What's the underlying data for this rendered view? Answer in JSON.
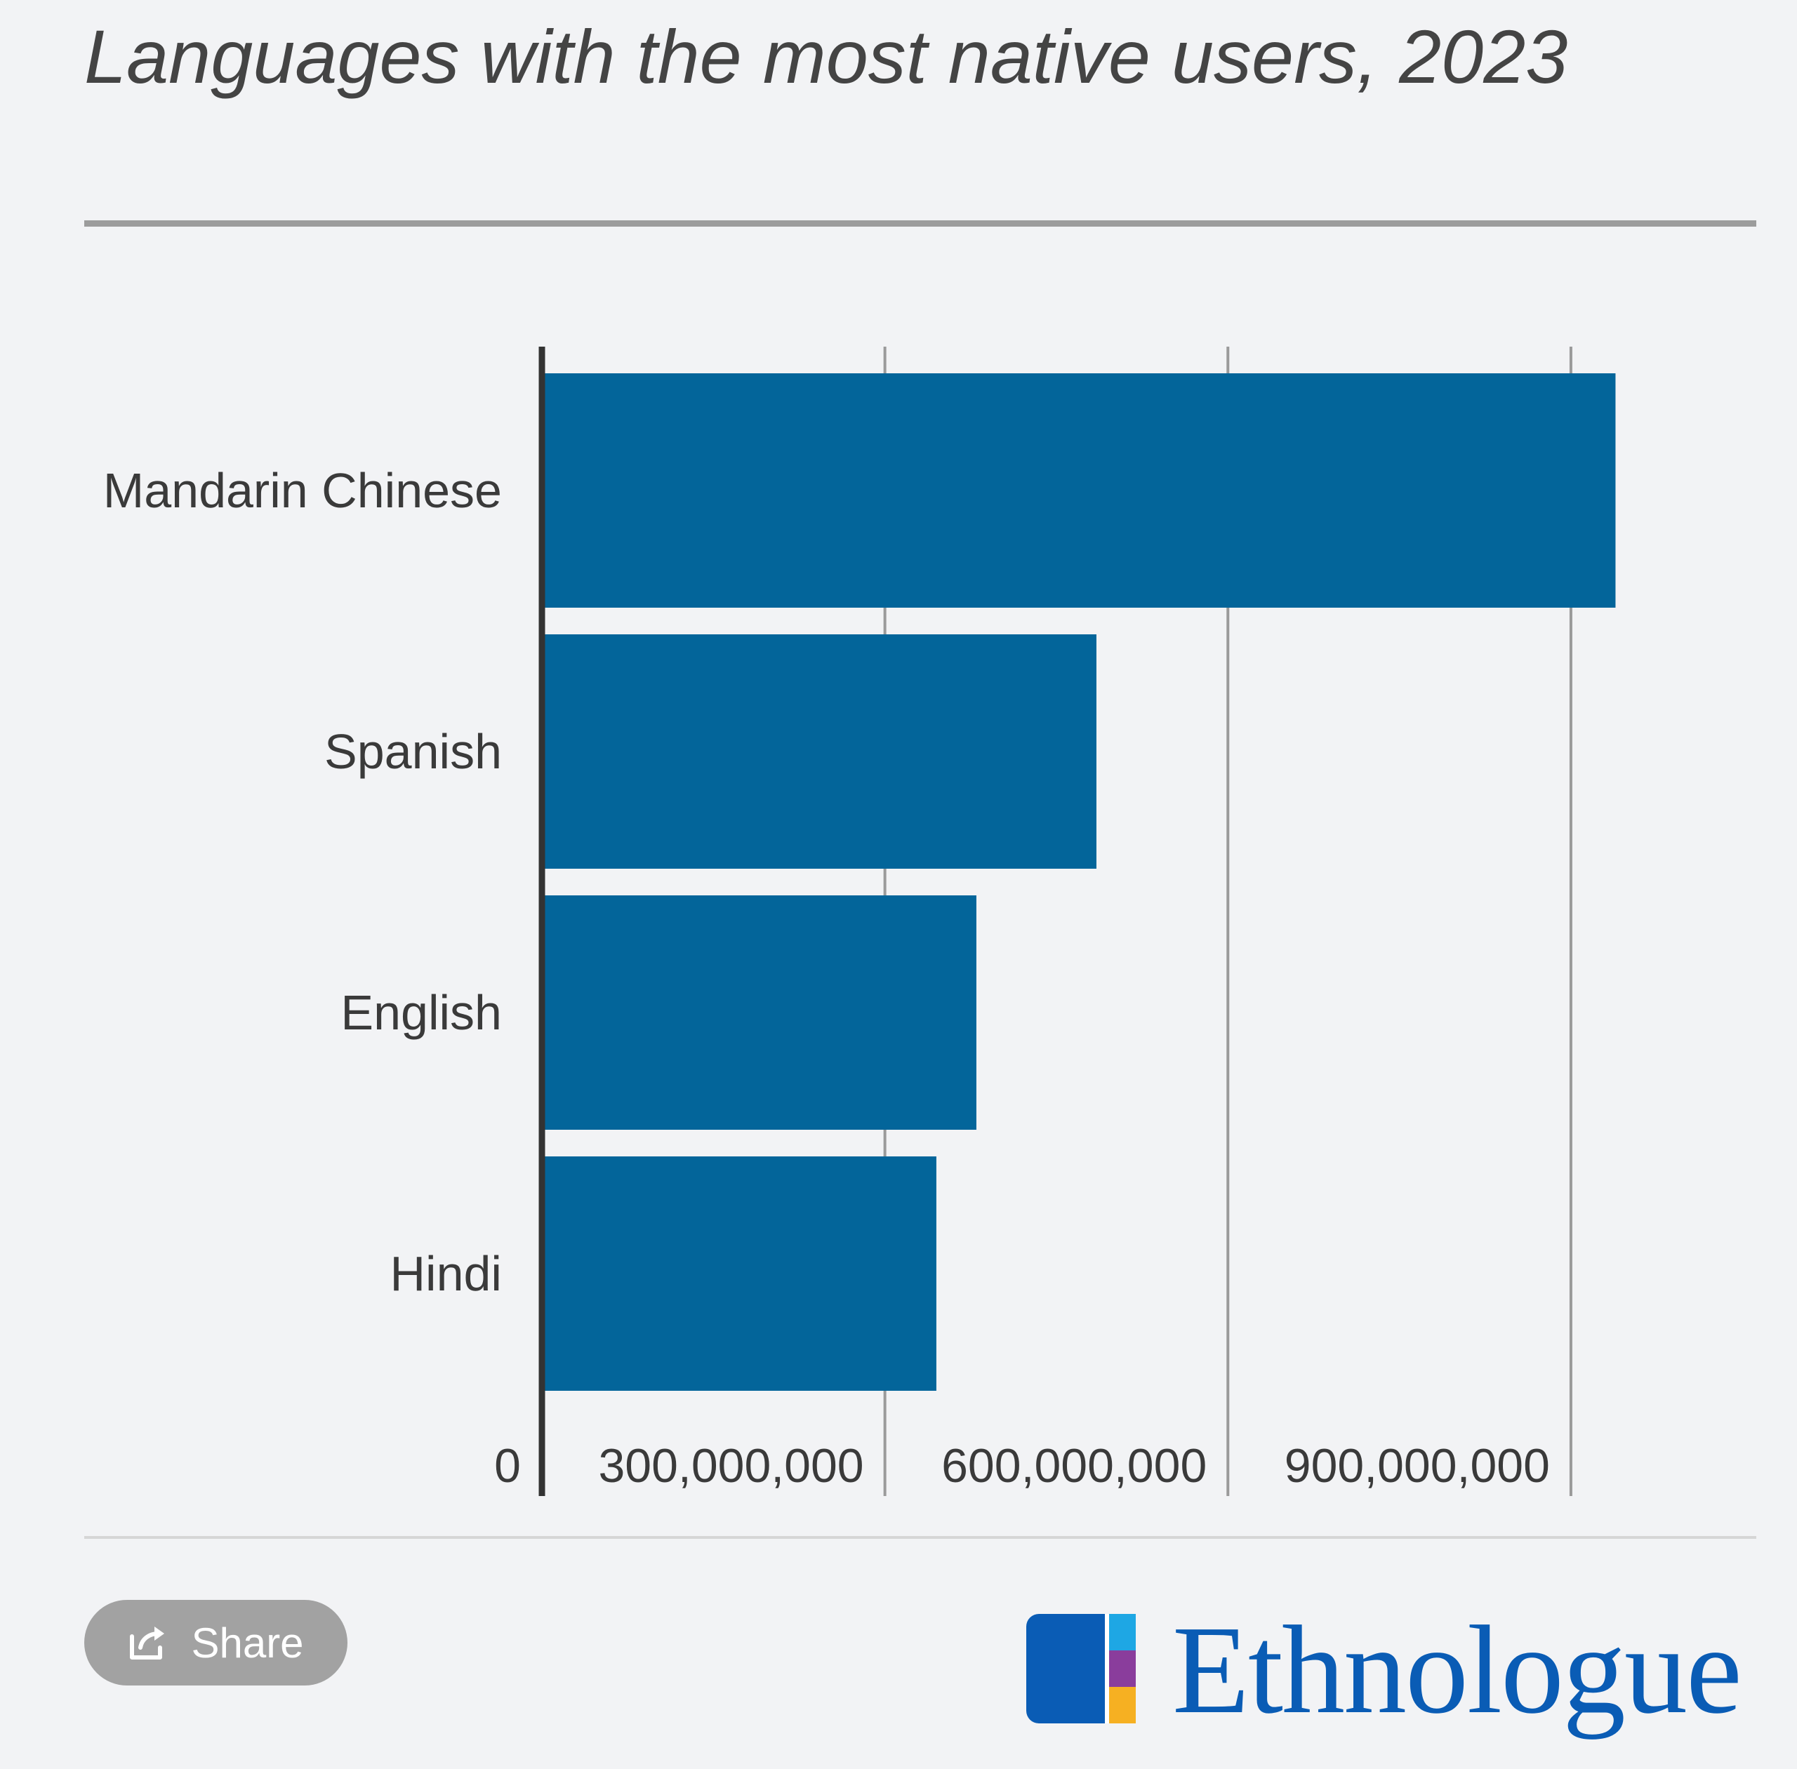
{
  "chart_data": {
    "type": "bar",
    "orientation": "horizontal",
    "title": "Languages with the most native users, 2023",
    "categories": [
      "Mandarin Chinese",
      "Spanish",
      "English",
      "Hindi"
    ],
    "values": [
      939000000,
      485000000,
      380000000,
      345000000
    ],
    "xlabel": "",
    "ylabel": "",
    "xlim": [
      0,
      1000000000
    ],
    "ticks": [
      0,
      300000000,
      600000000,
      900000000
    ],
    "tick_labels": [
      "0",
      "300,000,000",
      "600,000,000",
      "900,000,000"
    ],
    "grid": true,
    "bar_color": "#03659a"
  },
  "share": {
    "label": "Share",
    "icon": "share-icon"
  },
  "brand": {
    "name": "Ethnologue",
    "icon": "ethnologue-logo"
  },
  "colors": {
    "background": "#f2f3f5",
    "bar": "#03659a",
    "brand": "#0a5cb5",
    "button": "#a2a2a2"
  }
}
